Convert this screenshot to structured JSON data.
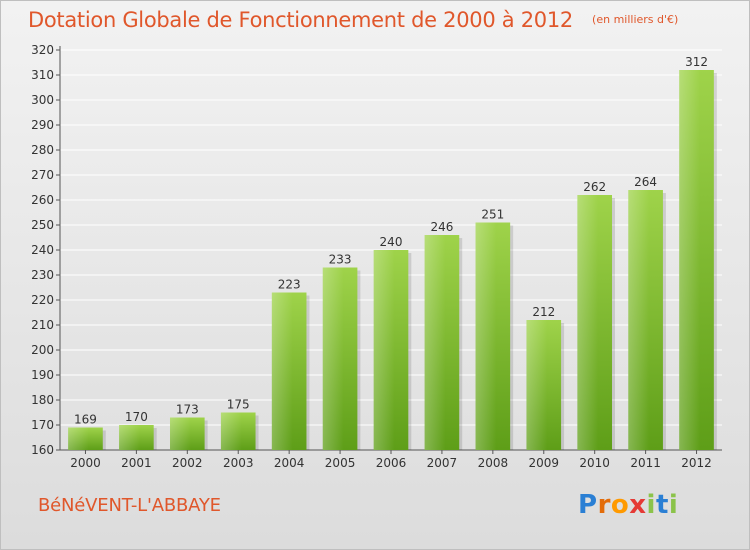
{
  "header": {
    "title": "Dotation Globale de Fonctionnement de 2000 à 2012",
    "subtitle": "(en milliers d'€)"
  },
  "footer": {
    "commune": "BéNéVENT-L'ABBAYE",
    "logo_text": "Proxiti",
    "logo_letters": [
      "P",
      "r",
      "o",
      "x",
      "i",
      "t",
      "i"
    ],
    "logo_colors": [
      "#2a7fd4",
      "#e36c0a",
      "#ff9a00",
      "#e53935",
      "#8bc34a",
      "#2a7fd4",
      "#8bc34a"
    ]
  },
  "colors": {
    "title": "#e0572b",
    "bar_light": "#9fd34a",
    "bar_dark": "#5e9e18",
    "grid": "#ffffff",
    "axis_text": "#333333"
  },
  "chart_data": {
    "type": "bar",
    "categories": [
      "2000",
      "2001",
      "2002",
      "2003",
      "2004",
      "2005",
      "2006",
      "2007",
      "2008",
      "2009",
      "2010",
      "2011",
      "2012"
    ],
    "values": [
      169,
      170,
      173,
      175,
      223,
      233,
      240,
      246,
      251,
      212,
      262,
      264,
      312
    ],
    "ylim": [
      160,
      320
    ],
    "ytick_step": 10,
    "grid": true,
    "data_labels": true
  }
}
